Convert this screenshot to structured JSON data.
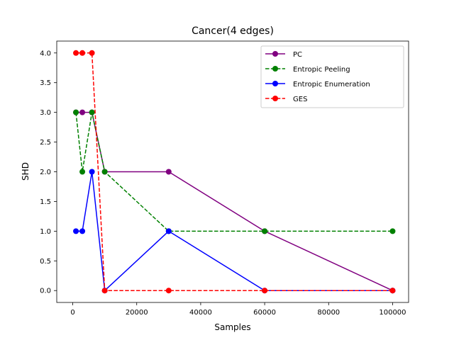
{
  "chart_data": {
    "type": "line",
    "title": "Cancer(4 edges)",
    "xlabel": "Samples",
    "ylabel": "SHD",
    "xlim": [
      -5000,
      105000
    ],
    "ylim": [
      -0.2,
      4.2
    ],
    "xticks": [
      0,
      20000,
      40000,
      60000,
      80000,
      100000
    ],
    "xtick_labels": [
      "0",
      "20000",
      "40000",
      "60000",
      "80000",
      "100000"
    ],
    "yticks": [
      0.0,
      0.5,
      1.0,
      1.5,
      2.0,
      2.5,
      3.0,
      3.5,
      4.0
    ],
    "ytick_labels": [
      "0.0",
      "0.5",
      "1.0",
      "1.5",
      "2.0",
      "2.5",
      "3.0",
      "3.5",
      "4.0"
    ],
    "grid": false,
    "legend_position": "top-right",
    "x": [
      1000,
      3000,
      6000,
      10000,
      30000,
      60000,
      100000
    ],
    "series": [
      {
        "name": "PC",
        "color": "#800080",
        "linestyle": "solid",
        "values": [
          3,
          3,
          3,
          2,
          2,
          1,
          0
        ]
      },
      {
        "name": "Entropic Peeling",
        "color": "#008000",
        "linestyle": "dashed",
        "values": [
          3,
          2,
          3,
          2,
          1,
          1,
          1
        ]
      },
      {
        "name": "Entropic Enumeration",
        "color": "#0000ff",
        "linestyle": "solid",
        "values": [
          1,
          1,
          2,
          0,
          1,
          0,
          0
        ]
      },
      {
        "name": "GES",
        "color": "#ff0000",
        "linestyle": "dashed",
        "values": [
          4,
          4,
          4,
          0,
          0,
          0,
          0
        ]
      }
    ]
  }
}
